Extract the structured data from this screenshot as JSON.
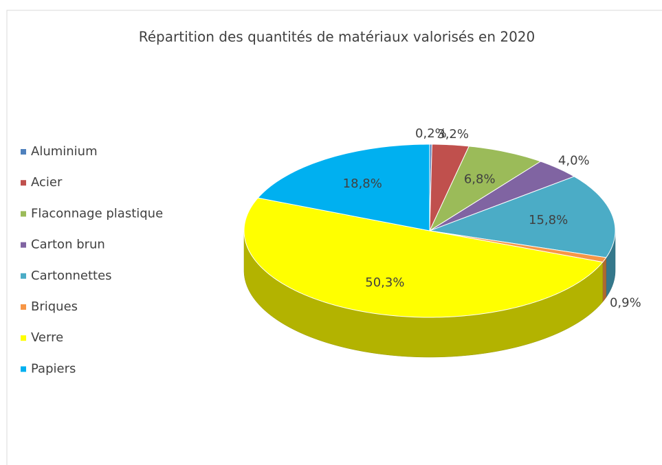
{
  "chart_data": {
    "type": "pie3d",
    "title": "Répartition des quantités de matériaux valorisés en 2020",
    "categories": [
      "Aluminium",
      "Acier",
      "Flaconnage plastique",
      "Carton brun",
      "Cartonnettes",
      "Briques",
      "Verre",
      "Papiers"
    ],
    "values": [
      0.2,
      3.2,
      6.8,
      4.0,
      15.8,
      0.9,
      50.3,
      18.8
    ],
    "value_labels": [
      "0,2%",
      "3,2%",
      "6,8%",
      "4,0%",
      "15,8%",
      "0,9%",
      "50,3%",
      "18,8%"
    ],
    "colors": [
      "#4f81bd",
      "#c0504d",
      "#9bbb59",
      "#8064a2",
      "#4bacc6",
      "#f79646",
      "#ffff00",
      "#00b0f0"
    ],
    "legend": "left"
  }
}
